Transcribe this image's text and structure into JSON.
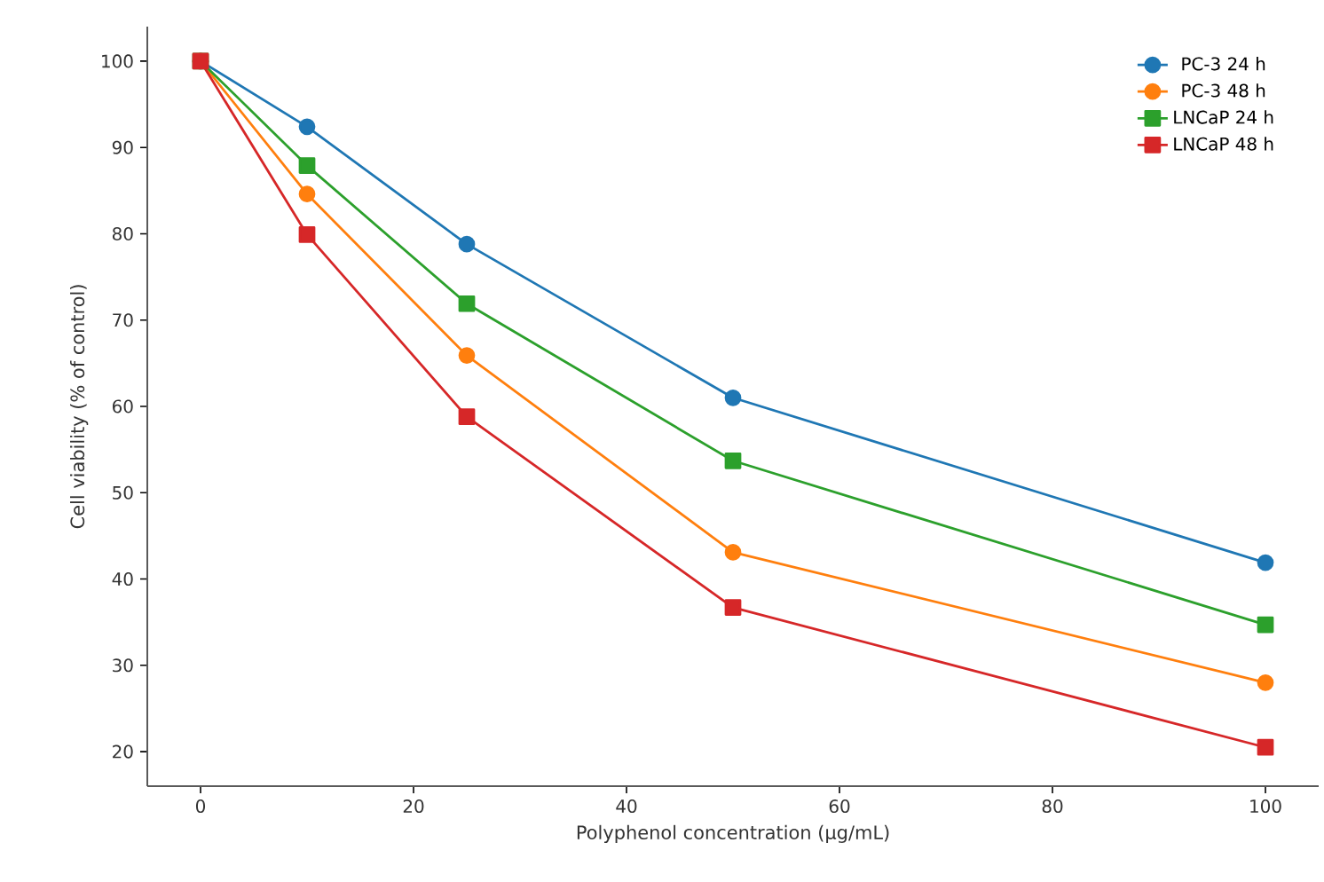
{
  "chart_data": {
    "type": "line",
    "xlabel": "Polyphenol concentration (µg/mL)",
    "ylabel": "Cell viability (% of control)",
    "x": [
      0,
      10,
      25,
      50,
      100
    ],
    "series": [
      {
        "name": "PC-3 24 h",
        "color": "#1f77b4",
        "marker": "circle",
        "values": [
          100,
          92.4,
          78.8,
          61,
          41.9
        ]
      },
      {
        "name": "PC-3 48 h",
        "color": "#ff7f0e",
        "marker": "circle",
        "values": [
          100,
          84.6,
          65.9,
          43.1,
          28
        ]
      },
      {
        "name": "LNCaP 24 h",
        "color": "#2ca02c",
        "marker": "square",
        "values": [
          100,
          87.9,
          71.9,
          53.7,
          34.7
        ]
      },
      {
        "name": "LNCaP 48 h",
        "color": "#d62728",
        "marker": "square",
        "values": [
          100,
          79.9,
          58.8,
          36.7,
          20.5
        ]
      }
    ],
    "xlim": [
      -5,
      105
    ],
    "ylim": [
      16,
      104
    ],
    "xticks": [
      0,
      20,
      40,
      60,
      80,
      100
    ],
    "yticks": [
      20,
      30,
      40,
      50,
      60,
      70,
      80,
      90,
      100
    ],
    "legend": "top right",
    "grid": false,
    "line_style": "solid"
  }
}
